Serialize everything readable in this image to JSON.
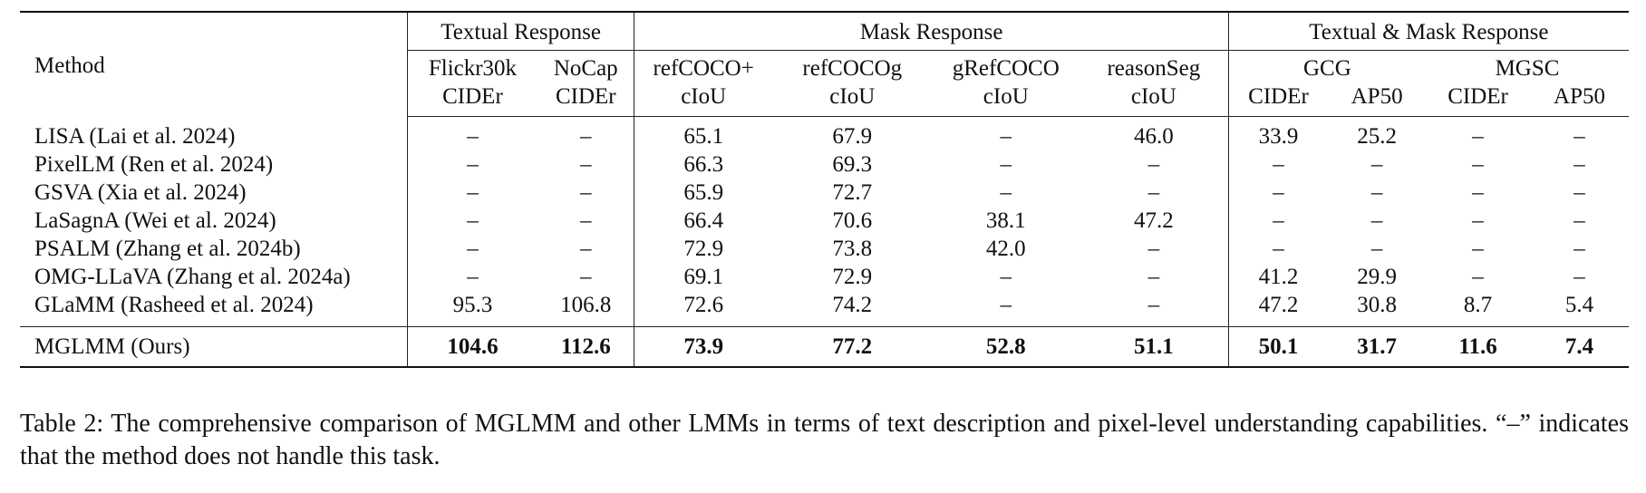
{
  "table": {
    "method_header": "Method",
    "groups": [
      {
        "label": "Textual Response"
      },
      {
        "label": "Mask Response"
      },
      {
        "label": "Textual & Mask Response"
      }
    ],
    "columns": [
      {
        "dataset": "Flickr30k",
        "metric": "CIDEr"
      },
      {
        "dataset": "NoCap",
        "metric": "CIDEr"
      },
      {
        "dataset": "refCOCO+",
        "metric": "cIoU"
      },
      {
        "dataset": "refCOCOg",
        "metric": "cIoU"
      },
      {
        "dataset": "gRefCOCO",
        "metric": "cIoU"
      },
      {
        "dataset": "reasonSeg",
        "metric": "cIoU"
      }
    ],
    "subgroups": [
      {
        "label": "GCG",
        "metrics": [
          "CIDEr",
          "AP50"
        ]
      },
      {
        "label": "MGSC",
        "metrics": [
          "CIDEr",
          "AP50"
        ]
      }
    ],
    "rows": [
      {
        "method": "LISA (Lai et al. 2024)",
        "values": [
          "–",
          "–",
          "65.1",
          "67.9",
          "–",
          "46.0",
          "33.9",
          "25.2",
          "–",
          "–"
        ]
      },
      {
        "method": "PixelLM (Ren et al. 2024)",
        "values": [
          "–",
          "–",
          "66.3",
          "69.3",
          "–",
          "–",
          "–",
          "–",
          "–",
          "–"
        ]
      },
      {
        "method": "GSVA (Xia et al. 2024)",
        "values": [
          "–",
          "–",
          "65.9",
          "72.7",
          "–",
          "–",
          "–",
          "–",
          "–",
          "–"
        ]
      },
      {
        "method": "LaSagnA (Wei et al. 2024)",
        "values": [
          "–",
          "–",
          "66.4",
          "70.6",
          "38.1",
          "47.2",
          "–",
          "–",
          "–",
          "–"
        ]
      },
      {
        "method": "PSALM (Zhang et al. 2024b)",
        "values": [
          "–",
          "–",
          "72.9",
          "73.8",
          "42.0",
          "–",
          "–",
          "–",
          "–",
          "–"
        ]
      },
      {
        "method": "OMG-LLaVA (Zhang et al. 2024a)",
        "values": [
          "–",
          "–",
          "69.1",
          "72.9",
          "–",
          "–",
          "41.2",
          "29.9",
          "–",
          "–"
        ]
      },
      {
        "method": "GLaMM (Rasheed et al. 2024)",
        "values": [
          "95.3",
          "106.8",
          "72.6",
          "74.2",
          "–",
          "–",
          "47.2",
          "30.8",
          "8.7",
          "5.4"
        ]
      }
    ],
    "ours": {
      "method": "MGLMM (Ours)",
      "values": [
        "104.6",
        "112.6",
        "73.9",
        "77.2",
        "52.8",
        "51.1",
        "50.1",
        "31.7",
        "11.6",
        "7.4"
      ]
    }
  },
  "caption": "Table 2: The comprehensive comparison of MGLMM and other LMMs in terms of text description and pixel-level understanding capabilities. “–” indicates that the method does not handle this task."
}
